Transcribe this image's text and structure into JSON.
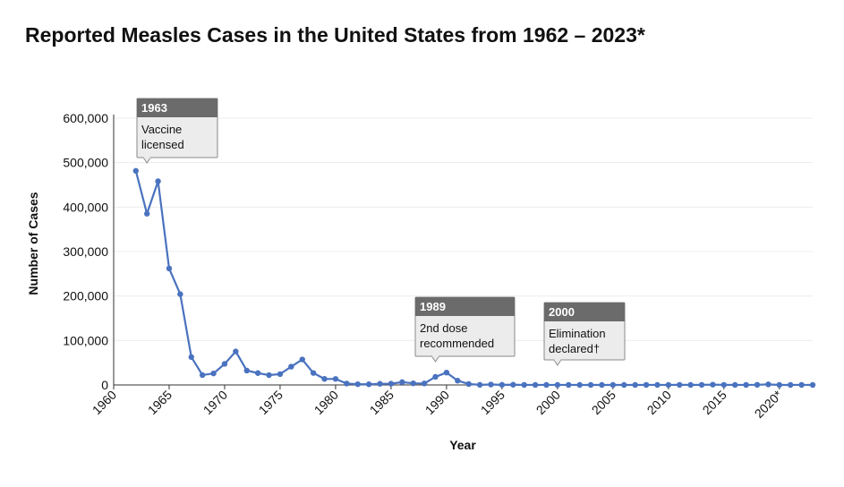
{
  "chart_data": {
    "type": "line",
    "title": "Reported Measles Cases in the United States from 1962 – 2023*",
    "xlabel": "Year",
    "ylabel": "Number of Cases",
    "xlim": [
      1960,
      2023
    ],
    "ylim": [
      0,
      600000
    ],
    "grid": true,
    "x_ticks": [
      "1960",
      "1965",
      "1970",
      "1975",
      "1980",
      "1985",
      "1990",
      "1995",
      "2000",
      "2005",
      "2010",
      "2015",
      "2020*"
    ],
    "y_ticks": [
      "0",
      "100,000",
      "200,000",
      "300,000",
      "400,000",
      "500,000",
      "600,000"
    ],
    "series_color": "#4a72bf",
    "x": [
      1962,
      1963,
      1964,
      1965,
      1966,
      1967,
      1968,
      1969,
      1970,
      1971,
      1972,
      1973,
      1974,
      1975,
      1976,
      1977,
      1978,
      1979,
      1980,
      1981,
      1982,
      1983,
      1984,
      1985,
      1986,
      1987,
      1988,
      1989,
      1990,
      1991,
      1992,
      1993,
      1994,
      1995,
      1996,
      1997,
      1998,
      1999,
      2000,
      2001,
      2002,
      2003,
      2004,
      2005,
      2006,
      2007,
      2008,
      2009,
      2010,
      2011,
      2012,
      2013,
      2014,
      2015,
      2016,
      2017,
      2018,
      2019,
      2020,
      2021,
      2022,
      2023
    ],
    "values": [
      481530,
      385156,
      458083,
      261904,
      204136,
      62705,
      22231,
      25826,
      47351,
      75290,
      32275,
      26690,
      22094,
      24374,
      41126,
      57345,
      26871,
      13597,
      13506,
      3124,
      1714,
      1497,
      2587,
      2822,
      6282,
      3655,
      3396,
      18193,
      27786,
      9643,
      2126,
      312,
      963,
      309,
      508,
      138,
      100,
      100,
      86,
      116,
      44,
      56,
      37,
      66,
      55,
      43,
      140,
      71,
      63,
      220,
      55,
      187,
      667,
      188,
      86,
      120,
      375,
      1274,
      13,
      49,
      121,
      59
    ],
    "annotations": [
      {
        "year": 1963,
        "head": "1963",
        "lines": [
          "Vaccine",
          "licensed"
        ]
      },
      {
        "year": 1989,
        "head": "1989",
        "lines": [
          "2nd dose",
          "recommended"
        ]
      },
      {
        "year": 2000,
        "head": "2000",
        "lines": [
          "Elimination",
          "declared†"
        ]
      }
    ]
  }
}
